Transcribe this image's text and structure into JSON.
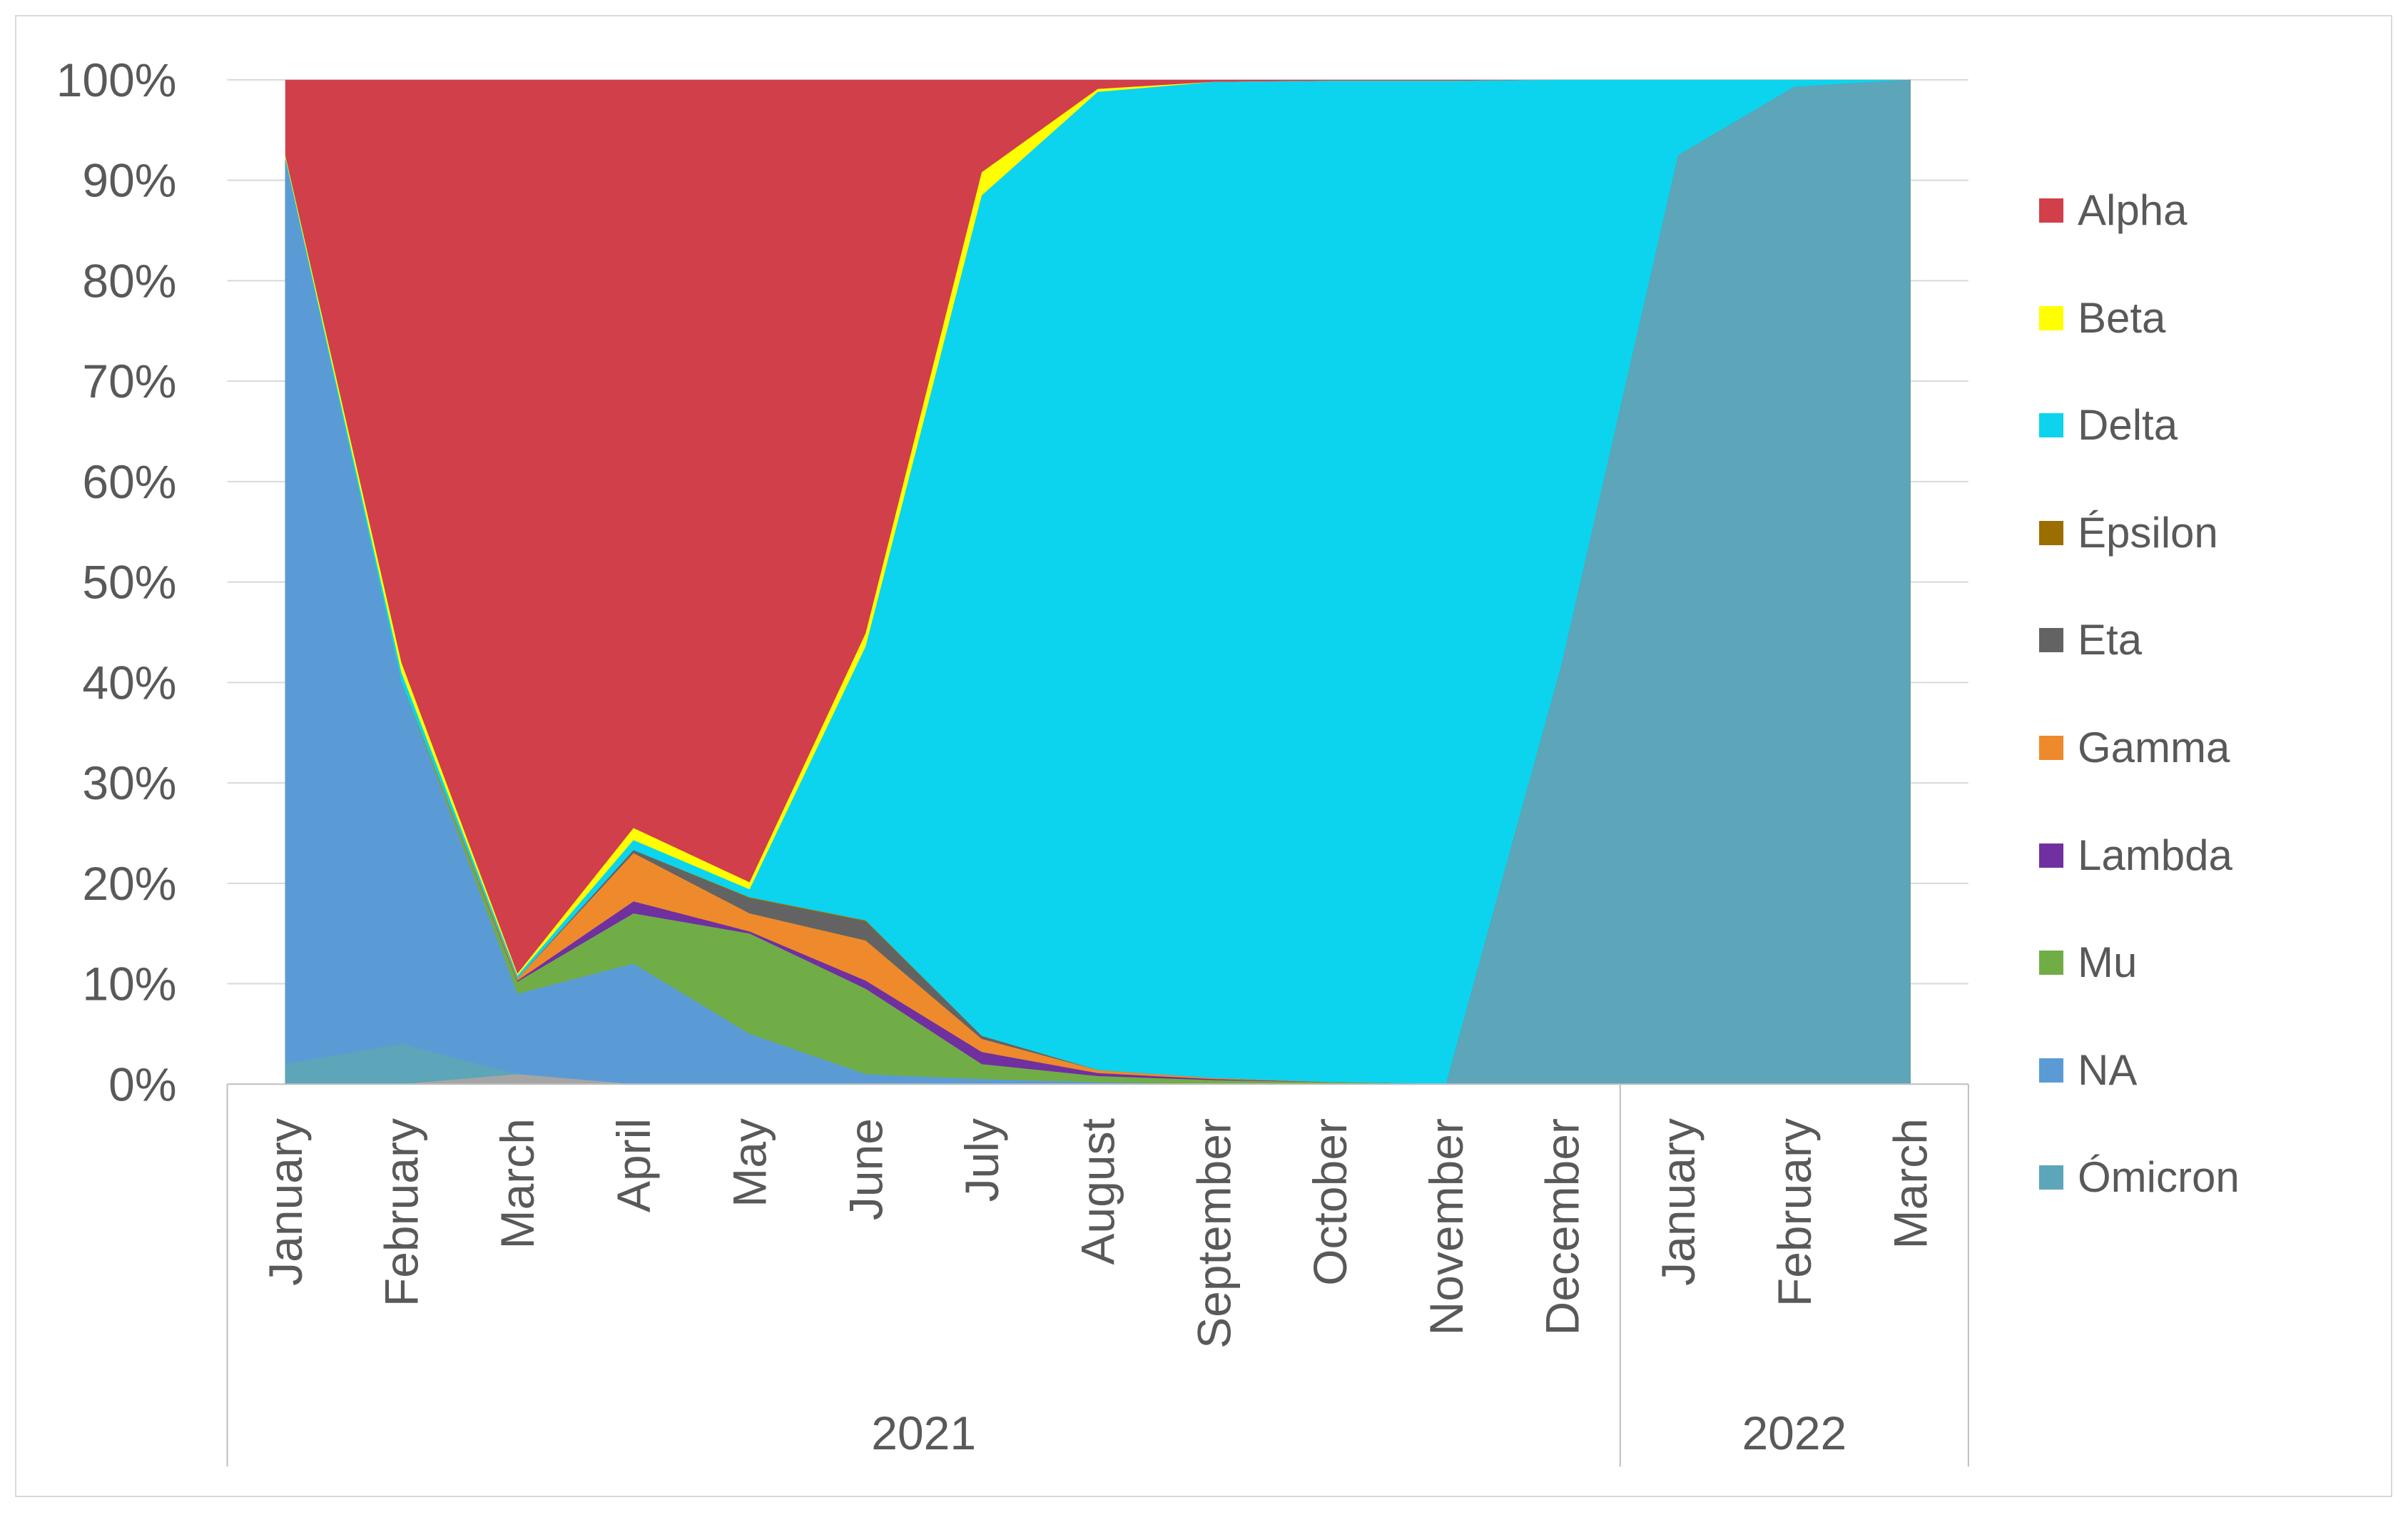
{
  "chart_data": {
    "type": "area",
    "stacked": "percent",
    "year_groups": [
      {
        "label": "2021",
        "months": [
          "January",
          "February",
          "March",
          "April",
          "May",
          "June",
          "July",
          "August",
          "September",
          "October",
          "November",
          "December"
        ]
      },
      {
        "label": "2022",
        "months": [
          "January",
          "February",
          "March"
        ]
      }
    ],
    "ylim": [
      0,
      100
    ],
    "y_tick_labels": [
      "0%",
      "10%",
      "20%",
      "30%",
      "40%",
      "50%",
      "60%",
      "70%",
      "80%",
      "90%",
      "100%"
    ],
    "grid": true,
    "legend_position": "right",
    "series": [
      {
        "color": "#A5A5A5",
        "values": [
          0,
          0,
          1,
          0,
          0,
          0,
          0,
          0,
          0,
          0,
          0,
          0,
          0,
          0,
          0
        ]
      },
      {
        "name": "Ómicron",
        "color": "#5DA5B9",
        "values": [
          2,
          4,
          0,
          0,
          0,
          0,
          0,
          0,
          0,
          0,
          0,
          42,
          92.5,
          99.3,
          100
        ]
      },
      {
        "name": "NA",
        "color": "#5B9BD5",
        "values": [
          90,
          36,
          8,
          12,
          5,
          1,
          0.5,
          0.2,
          0,
          0,
          0,
          0,
          0,
          0,
          0
        ]
      },
      {
        "name": "Mu",
        "color": "#70AD47",
        "values": [
          0,
          0,
          1.2,
          5,
          10,
          8.5,
          1.5,
          0.6,
          0.4,
          0.2,
          0,
          0,
          0,
          0,
          0
        ]
      },
      {
        "name": "Lambda",
        "color": "#7030A0",
        "values": [
          0,
          0,
          0.1,
          1.2,
          0.2,
          0.8,
          1.2,
          0.3,
          0.1,
          0,
          0,
          0,
          0,
          0,
          0
        ]
      },
      {
        "name": "Gamma",
        "color": "#EE8A2C",
        "values": [
          0,
          0,
          0.2,
          4.8,
          1.8,
          4,
          1.3,
          0.3,
          0.1,
          0,
          0,
          0,
          0,
          0,
          0
        ]
      },
      {
        "name": "Eta",
        "color": "#636363",
        "values": [
          0,
          0,
          0,
          0.3,
          1.5,
          1.9,
          0.3,
          0,
          0,
          0,
          0,
          0,
          0,
          0,
          0
        ]
      },
      {
        "name": "Épsilon",
        "color": "#9C6D00",
        "values": [
          0,
          0,
          0,
          0,
          0.1,
          0.1,
          0,
          0,
          0,
          0,
          0,
          0,
          0,
          0,
          0
        ]
      },
      {
        "name": "Delta",
        "color": "#0CD4EE",
        "values": [
          0.3,
          1,
          0.3,
          1,
          0.8,
          27.3,
          83.7,
          97.4,
          99.2,
          99.7,
          99.9,
          58,
          7.5,
          0.7,
          0
        ]
      },
      {
        "name": "Beta",
        "color": "#FFFF00",
        "values": [
          0.2,
          1,
          0.2,
          1.2,
          0.7,
          1.3,
          2.3,
          0.3,
          0,
          0,
          0,
          0,
          0,
          0,
          0
        ]
      },
      {
        "name": "Alpha",
        "color": "#D13F4B",
        "values": [
          7.5,
          58,
          89,
          74.5,
          79.9,
          55.1,
          9.2,
          0.9,
          0.2,
          0.1,
          0.1,
          0,
          0,
          0,
          0
        ]
      }
    ]
  }
}
